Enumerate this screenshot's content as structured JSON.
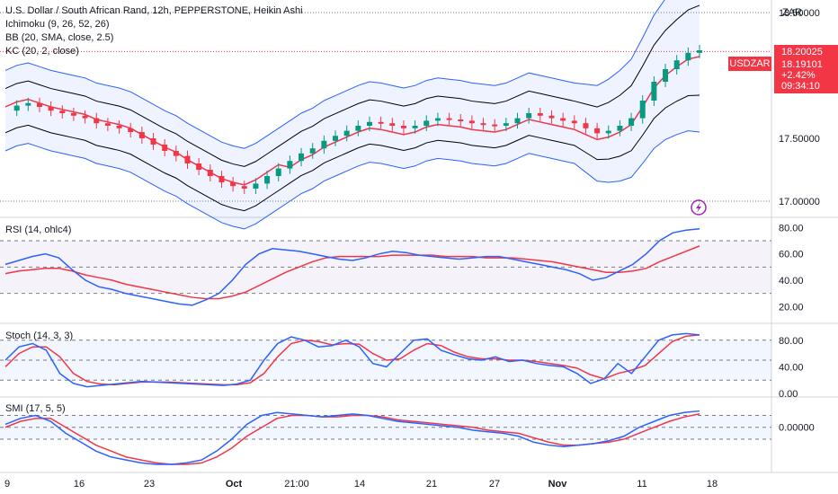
{
  "header": {
    "title": "U.S. Dollar / South African Rand, 12h, PEPPERSTONE, Heikin Ashi",
    "indicators": [
      "Ichimoku (9, 26, 52, 26)",
      "BB (20, SMA, close, 2.5)",
      "KC (20, 2, close)"
    ]
  },
  "currency": "ZAR",
  "symbol": "USDZAR",
  "price_box": {
    "price": "18.20025",
    "last": "18.19101",
    "change": "+2.42%",
    "countdown": "09:34:10"
  },
  "panes": {
    "rsi": {
      "label": "RSI (14, ohlc4)",
      "ticks": [
        "80.00",
        "60.00",
        "40.00",
        "20.00"
      ]
    },
    "stoch": {
      "label": "Stoch (14, 3, 3)",
      "ticks": [
        "80.00",
        "40.00",
        "0.00"
      ]
    },
    "smi": {
      "label": "SMI (17, 5, 5)",
      "ticks": [
        "0.00000"
      ]
    }
  },
  "colors": {
    "up": "#089981",
    "down": "#f23645",
    "rsi": "#2962ff",
    "signal": "#f23645",
    "bb": "#2962ff",
    "kc": "#000000"
  },
  "chart_data": {
    "type": "candlestick",
    "price_ticks": [
      "18.50000",
      "18.00000",
      "17.50000",
      "17.00000"
    ],
    "x_labels": [
      "9",
      "16",
      "23",
      "Oct",
      "21:00",
      "14",
      "21",
      "27",
      "Nov",
      "11",
      "18"
    ],
    "heikin_ashi_close": [
      17.72,
      17.76,
      17.78,
      17.75,
      17.72,
      17.7,
      17.68,
      17.66,
      17.62,
      17.6,
      17.58,
      17.55,
      17.5,
      17.45,
      17.4,
      17.36,
      17.3,
      17.25,
      17.2,
      17.15,
      17.12,
      17.1,
      17.14,
      17.2,
      17.26,
      17.32,
      17.38,
      17.42,
      17.48,
      17.52,
      17.56,
      17.6,
      17.63,
      17.62,
      17.6,
      17.58,
      17.6,
      17.64,
      17.66,
      17.65,
      17.64,
      17.62,
      17.61,
      17.6,
      17.62,
      17.66,
      17.7,
      17.68,
      17.66,
      17.64,
      17.62,
      17.58,
      17.54,
      17.56,
      17.6,
      17.66,
      17.8,
      17.95,
      18.05,
      18.12,
      18.18,
      18.2
    ],
    "rsi": [
      52,
      55,
      58,
      60,
      57,
      48,
      40,
      35,
      33,
      30,
      28,
      26,
      24,
      22,
      21,
      25,
      30,
      40,
      52,
      60,
      64,
      63,
      62,
      60,
      58,
      56,
      55,
      57,
      60,
      62,
      61,
      59,
      58,
      57,
      56,
      57,
      58,
      58,
      56,
      54,
      52,
      50,
      48,
      45,
      40,
      42,
      47,
      52,
      60,
      70,
      76,
      78,
      79
    ],
    "rsi_signal": [
      45,
      47,
      48,
      49,
      49,
      47,
      44,
      42,
      40,
      37,
      35,
      33,
      31,
      29,
      27,
      26,
      26,
      28,
      31,
      36,
      41,
      46,
      50,
      54,
      57,
      58,
      58,
      58,
      58,
      59,
      59,
      59,
      59,
      58,
      58,
      58,
      57,
      57,
      57,
      56,
      55,
      54,
      52,
      50,
      48,
      46,
      46,
      47,
      49,
      54,
      58,
      62,
      66
    ],
    "stoch_k": [
      50,
      70,
      75,
      65,
      30,
      15,
      10,
      12,
      14,
      16,
      18,
      17,
      16,
      15,
      14,
      13,
      12,
      14,
      20,
      50,
      75,
      85,
      80,
      70,
      72,
      80,
      70,
      45,
      40,
      60,
      80,
      82,
      65,
      58,
      52,
      50,
      55,
      48,
      50,
      45,
      42,
      40,
      30,
      15,
      22,
      45,
      30,
      55,
      80,
      88,
      90,
      88
    ],
    "stoch_d": [
      40,
      60,
      70,
      70,
      55,
      30,
      18,
      14,
      13,
      15,
      17,
      17,
      17,
      16,
      15,
      14,
      13,
      13,
      16,
      30,
      55,
      75,
      80,
      78,
      73,
      75,
      74,
      60,
      50,
      52,
      65,
      75,
      72,
      62,
      55,
      52,
      52,
      50,
      50,
      48,
      45,
      42,
      38,
      28,
      22,
      30,
      35,
      42,
      60,
      78,
      86,
      88
    ],
    "smi": [
      0.01,
      0.03,
      0.04,
      0.02,
      -0.02,
      -0.05,
      -0.08,
      -0.1,
      -0.11,
      -0.12,
      -0.125,
      -0.125,
      -0.12,
      -0.11,
      -0.08,
      -0.04,
      0.01,
      0.04,
      0.05,
      0.045,
      0.04,
      0.035,
      0.04,
      0.045,
      0.04,
      0.03,
      0.02,
      0.015,
      0.01,
      0.005,
      0.0,
      -0.01,
      -0.015,
      -0.02,
      -0.03,
      -0.05,
      -0.06,
      -0.065,
      -0.06,
      -0.055,
      -0.045,
      -0.03,
      -0.0,
      0.02,
      0.04,
      0.05,
      0.055
    ],
    "smi_signal": [
      0.0,
      0.02,
      0.03,
      0.03,
      0.0,
      -0.03,
      -0.06,
      -0.08,
      -0.1,
      -0.11,
      -0.12,
      -0.125,
      -0.125,
      -0.12,
      -0.1,
      -0.07,
      -0.03,
      0.0,
      0.03,
      0.04,
      0.04,
      0.035,
      0.035,
      0.04,
      0.04,
      0.035,
      0.025,
      0.02,
      0.015,
      0.01,
      0.005,
      0.0,
      -0.01,
      -0.015,
      -0.02,
      -0.035,
      -0.05,
      -0.06,
      -0.06,
      -0.055,
      -0.05,
      -0.04,
      -0.02,
      0.0,
      0.02,
      0.035,
      0.045
    ]
  }
}
